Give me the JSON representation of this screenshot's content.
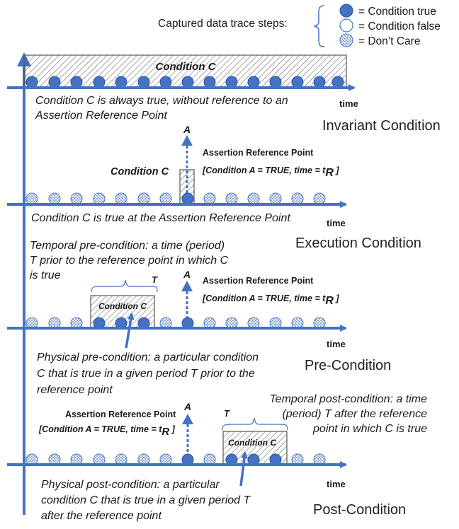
{
  "legend": {
    "title": "Captured data trace steps:",
    "items": [
      {
        "label": "= Condition true",
        "marker": "filled-circle-icon"
      },
      {
        "label": "= Condition false",
        "marker": "empty-circle-icon"
      },
      {
        "label": "= Don’t Care",
        "marker": "dotted-circle-icon"
      }
    ]
  },
  "colors": {
    "axis": "#4472C4",
    "dot_fill": "#4472C4",
    "dot_stroke": "#2F5597",
    "hatch": "#555555",
    "box_stroke": "#555555",
    "dontcare_dots": "#3A66B0"
  },
  "invariant": {
    "box_label": "Condition C",
    "description_line1": "Condition C is always true, without reference to an",
    "description_line2": "Assertion Reference Point",
    "axis_label": "time",
    "heading": "Invariant Condition"
  },
  "execution": {
    "signal_label": "A",
    "arp_title": "Assertion Reference Point",
    "arp_detail": "[Condition A = TRUE, time  = t",
    "arp_subscript": "R",
    "arp_close": " ]",
    "box_label": "Condition C",
    "description": "Condition C is true at the Assertion Reference Point",
    "axis_label": "time",
    "heading": "Execution Condition"
  },
  "pre": {
    "temporal_line1": "Temporal pre-condition: a time (period)",
    "temporal_line2": "T prior to the reference point in which C",
    "temporal_line3": "is true",
    "period_label": "T",
    "signal_label": "A",
    "arp_title": "Assertion Reference Point",
    "arp_detail": "[Condition A = TRUE, time  = t",
    "arp_subscript": "R",
    "arp_close": " ]",
    "box_label": "Condition C",
    "physical_line1": "Physical pre-condition: a particular condition",
    "physical_line2": "C that is true in a given period T prior to the",
    "physical_line3": "reference point",
    "axis_label": "time",
    "heading": "Pre-Condition"
  },
  "post": {
    "temporal_line1": "Temporal post-condition: a time",
    "temporal_line2": "(period) T after the reference",
    "temporal_line3": "point in which C is true",
    "period_label": "T",
    "signal_label": "A",
    "arp_title": "Assertion Reference Point",
    "arp_detail": "[Condition A = TRUE, time  = t",
    "arp_subscript": "R",
    "arp_close": " ]",
    "box_label": "Condition C",
    "physical_line1": "Physical post-condition: a particular",
    "physical_line2": "condition C that is true in a given period T",
    "physical_line3": "after the reference point",
    "axis_label": "time",
    "heading": "Post-Condition"
  }
}
